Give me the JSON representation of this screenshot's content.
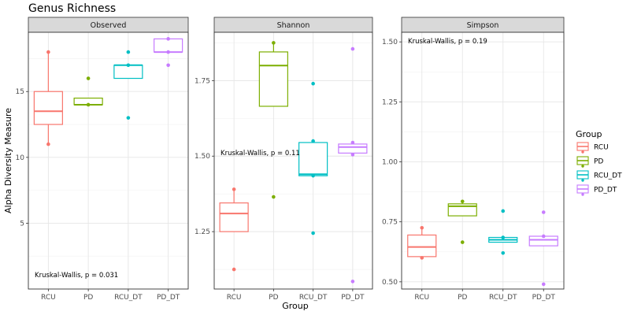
{
  "chart_data": {
    "type": "box",
    "title": "Genus Richness",
    "xlabel": "Group",
    "ylabel": "Alpha Diversity Measure",
    "categories": [
      "RCU",
      "PD",
      "RCU_DT",
      "PD_DT"
    ],
    "legend": {
      "title": "Group",
      "position": "right",
      "entries": [
        "RCU",
        "PD",
        "RCU_DT",
        "PD_DT"
      ]
    },
    "colors": {
      "RCU": "#F8766D",
      "PD": "#7CAE00",
      "RCU_DT": "#00BFC4",
      "PD_DT": "#C77CFF"
    },
    "grid": true,
    "panels": [
      {
        "name": "Observed",
        "ylim": [
          0,
          19.5
        ],
        "yticks": [
          5,
          10,
          15
        ],
        "ytick_labels": [
          "5",
          "10",
          "15"
        ],
        "annotation": "Kruskal-Wallis, p = 0.031",
        "annotation_pos": "bottom-left",
        "boxes": [
          {
            "group": "RCU",
            "min": 11,
            "q1": 12.5,
            "median": 13.5,
            "q3": 15,
            "max": 18
          },
          {
            "group": "PD",
            "min": 14,
            "q1": 14,
            "median": 14,
            "q3": 14.5,
            "max": 14.5
          },
          {
            "group": "RCU_DT",
            "min": 16,
            "q1": 16,
            "median": 17,
            "q3": 17,
            "max": 17
          },
          {
            "group": "PD_DT",
            "min": 18,
            "q1": 18,
            "median": 18,
            "q3": 19,
            "max": 19
          }
        ],
        "points": [
          {
            "group": "RCU",
            "values": [
              18,
              11
            ]
          },
          {
            "group": "PD",
            "values": [
              16,
              14
            ]
          },
          {
            "group": "RCU_DT",
            "values": [
              18,
              17,
              13
            ]
          },
          {
            "group": "PD_DT",
            "values": [
              19,
              18,
              17
            ]
          }
        ]
      },
      {
        "name": "Shannon",
        "ylim": [
          1.06,
          1.91
        ],
        "yticks": [
          1.25,
          1.5,
          1.75
        ],
        "ytick_labels": [
          "1.25",
          "1.50",
          "1.75"
        ],
        "annotation": "Kruskal-Wallis, p = 0.11",
        "annotation_pos": "middle-left",
        "boxes": [
          {
            "group": "RCU",
            "min": 1.25,
            "q1": 1.25,
            "median": 1.31,
            "q3": 1.345,
            "max": 1.39
          },
          {
            "group": "PD",
            "min": 1.665,
            "q1": 1.665,
            "median": 1.8,
            "q3": 1.845,
            "max": 1.875
          },
          {
            "group": "RCU_DT",
            "min": 1.435,
            "q1": 1.435,
            "median": 1.44,
            "q3": 1.545,
            "max": 1.545
          },
          {
            "group": "PD_DT",
            "min": 1.51,
            "q1": 1.51,
            "median": 1.53,
            "q3": 1.54,
            "max": 1.545
          }
        ],
        "points": [
          {
            "group": "RCU",
            "values": [
              1.39,
              1.125
            ]
          },
          {
            "group": "PD",
            "values": [
              1.875,
              1.365
            ]
          },
          {
            "group": "RCU_DT",
            "values": [
              1.74,
              1.55,
              1.435,
              1.245
            ]
          },
          {
            "group": "PD_DT",
            "values": [
              1.855,
              1.545,
              1.505,
              1.085
            ]
          }
        ]
      },
      {
        "name": "Simpson",
        "ylim": [
          0.47,
          1.54
        ],
        "yticks": [
          0.5,
          0.75,
          1.0,
          1.25,
          1.5
        ],
        "ytick_labels": [
          "0.50",
          "0.75",
          "1.00",
          "1.25",
          "1.50"
        ],
        "annotation": "Kruskal-Wallis, p = 0.19",
        "annotation_pos": "top-left",
        "boxes": [
          {
            "group": "RCU",
            "min": 0.6,
            "q1": 0.605,
            "median": 0.645,
            "q3": 0.695,
            "max": 0.72
          },
          {
            "group": "PD",
            "min": 0.775,
            "q1": 0.775,
            "median": 0.815,
            "q3": 0.825,
            "max": 0.83
          },
          {
            "group": "RCU_DT",
            "min": 0.665,
            "q1": 0.665,
            "median": 0.675,
            "q3": 0.685,
            "max": 0.685
          },
          {
            "group": "PD_DT",
            "min": 0.65,
            "q1": 0.65,
            "median": 0.675,
            "q3": 0.69,
            "max": 0.69
          }
        ],
        "points": [
          {
            "group": "RCU",
            "values": [
              0.725,
              0.6
            ]
          },
          {
            "group": "PD",
            "values": [
              0.835,
              0.665
            ]
          },
          {
            "group": "RCU_DT",
            "values": [
              0.795,
              0.685,
              0.62
            ]
          },
          {
            "group": "PD_DT",
            "values": [
              0.79,
              0.69,
              0.49
            ]
          }
        ]
      }
    ]
  }
}
